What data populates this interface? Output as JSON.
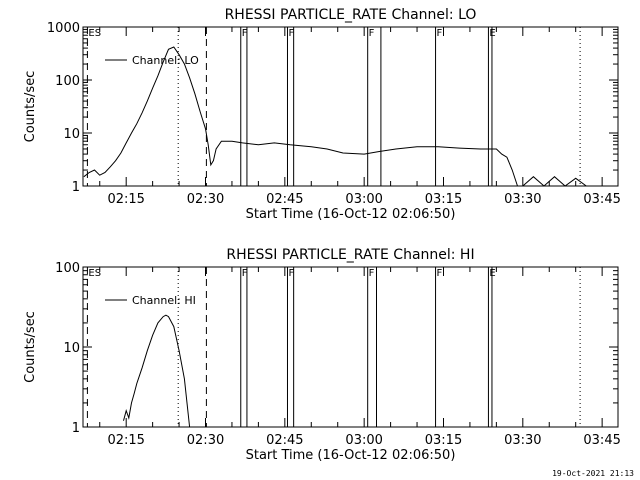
{
  "chart_data": [
    {
      "type": "line",
      "title": "RHESSI PARTICLE_RATE Channel: LO",
      "xlabel": "Start Time (16-Oct-12 02:06:50)",
      "ylabel": "Counts/sec",
      "xlim": [
        "02:06:50",
        "03:48:00"
      ],
      "ylim": [
        1,
        1000
      ],
      "y_scale": "log",
      "x_ticks": [
        "02:15",
        "02:30",
        "02:45",
        "03:00",
        "03:15",
        "03:30",
        "03:45"
      ],
      "y_ticks": [
        "1",
        "10",
        "100",
        "1000"
      ],
      "legend": {
        "placement": "top-left",
        "entries": [
          "Channel: LO"
        ]
      },
      "grid": false,
      "series": [
        {
          "name": "Channel: LO",
          "color": "#000000",
          "x": [
            "02:07:00",
            "02:08:00",
            "02:09:00",
            "02:10:00",
            "02:11:00",
            "02:12:00",
            "02:13:00",
            "02:14:00",
            "02:15:00",
            "02:16:00",
            "02:17:00",
            "02:18:00",
            "02:19:00",
            "02:20:00",
            "02:21:00",
            "02:22:00",
            "02:23:00",
            "02:24:00",
            "02:25:00",
            "02:26:00",
            "02:27:00",
            "02:28:00",
            "02:29:00",
            "02:30:00",
            "02:30:30",
            "02:31:00",
            "02:31:30",
            "02:32:00",
            "02:33:00",
            "02:35:00",
            "02:37:00",
            "02:40:00",
            "02:43:00",
            "02:46:00",
            "02:50:00",
            "02:53:00",
            "02:56:00",
            "03:00:00",
            "03:03:00",
            "03:06:00",
            "03:10:00",
            "03:14:00",
            "03:18:00",
            "03:22:00",
            "03:25:00",
            "03:26:00",
            "03:27:00",
            "03:28:00",
            "03:29:00",
            "03:30:00",
            "03:32:00",
            "03:34:00",
            "03:36:00",
            "03:38:00",
            "03:40:00",
            "03:42:00"
          ],
          "y": [
            1.5,
            1.8,
            2.0,
            1.6,
            1.8,
            2.3,
            3.0,
            4.2,
            6.5,
            10,
            15,
            24,
            40,
            70,
            120,
            220,
            380,
            420,
            300,
            200,
            110,
            55,
            25,
            12,
            6,
            2.5,
            3,
            5,
            7,
            7,
            6.5,
            6,
            6.5,
            6,
            5.5,
            5,
            4.2,
            4.0,
            4.5,
            5,
            5.5,
            5.5,
            5.2,
            5,
            5,
            4,
            3.5,
            2,
            1,
            1,
            1.5,
            1,
            1.5,
            1,
            1.4,
            1
          ]
        }
      ],
      "vertical_markers": [
        {
          "time": "02:07:40",
          "style": "dashed",
          "label": "ES"
        },
        {
          "time": "02:24:50",
          "style": "dotted",
          "label": ""
        },
        {
          "time": "02:30:10",
          "style": "dashed",
          "label": ""
        },
        {
          "time": "02:36:40",
          "style": "solid",
          "label": "F"
        },
        {
          "time": "02:37:50",
          "style": "solid",
          "label": ""
        },
        {
          "time": "02:45:30",
          "style": "solid",
          "label": "F"
        },
        {
          "time": "02:46:40",
          "style": "solid",
          "label": ""
        },
        {
          "time": "03:00:40",
          "style": "solid",
          "label": "F"
        },
        {
          "time": "03:03:10",
          "style": "solid",
          "label": ""
        },
        {
          "time": "03:13:30",
          "style": "solid",
          "label": "F"
        },
        {
          "time": "03:23:30",
          "style": "solid",
          "label": "E"
        },
        {
          "time": "03:24:10",
          "style": "solid",
          "label": ""
        },
        {
          "time": "03:40:50",
          "style": "dotted",
          "label": ""
        }
      ]
    },
    {
      "type": "line",
      "title": "RHESSI PARTICLE_RATE Channel: HI",
      "xlabel": "Start Time (16-Oct-12 02:06:50)",
      "ylabel": "Counts/sec",
      "xlim": [
        "02:06:50",
        "03:48:00"
      ],
      "ylim": [
        1,
        100
      ],
      "y_scale": "log",
      "x_ticks": [
        "02:15",
        "02:30",
        "02:45",
        "03:00",
        "03:15",
        "03:30",
        "03:45"
      ],
      "y_ticks": [
        "1",
        "10",
        "100"
      ],
      "legend": {
        "placement": "top-left",
        "entries": [
          "Channel: HI"
        ]
      },
      "grid": false,
      "series": [
        {
          "name": "Channel: HI",
          "color": "#000000",
          "x": [
            "02:14:30",
            "02:15:00",
            "02:15:30",
            "02:16:00",
            "02:16:30",
            "02:17:00",
            "02:18:00",
            "02:19:00",
            "02:20:00",
            "02:21:00",
            "02:22:00",
            "02:22:30",
            "02:23:00",
            "02:24:00",
            "02:25:00",
            "02:26:00",
            "02:26:30",
            "02:27:00"
          ],
          "y": [
            1.2,
            1.6,
            1.3,
            2,
            2.6,
            3.5,
            5.5,
            9,
            14,
            20,
            24,
            25,
            24,
            18,
            9,
            4,
            2,
            1
          ]
        }
      ],
      "vertical_markers": [
        {
          "time": "02:07:40",
          "style": "dashed",
          "label": "ES"
        },
        {
          "time": "02:24:50",
          "style": "dotted",
          "label": ""
        },
        {
          "time": "02:30:10",
          "style": "dashed",
          "label": ""
        },
        {
          "time": "02:36:40",
          "style": "solid",
          "label": "F"
        },
        {
          "time": "02:37:50",
          "style": "solid",
          "label": ""
        },
        {
          "time": "02:45:30",
          "style": "solid",
          "label": "F"
        },
        {
          "time": "02:46:40",
          "style": "solid",
          "label": ""
        },
        {
          "time": "03:00:40",
          "style": "solid",
          "label": "F"
        },
        {
          "time": "03:02:20",
          "style": "solid",
          "label": ""
        },
        {
          "time": "03:13:30",
          "style": "solid",
          "label": "F"
        },
        {
          "time": "03:23:30",
          "style": "solid",
          "label": "E"
        },
        {
          "time": "03:24:10",
          "style": "solid",
          "label": ""
        },
        {
          "time": "03:40:50",
          "style": "dotted",
          "label": ""
        }
      ]
    }
  ],
  "footer": {
    "timestamp": "19-Oct-2021 21:13"
  }
}
